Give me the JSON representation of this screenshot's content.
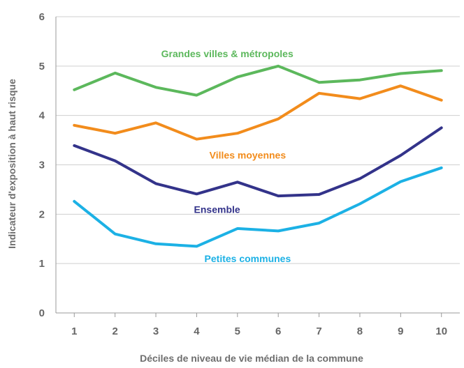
{
  "chart_data": {
    "type": "line",
    "title": "",
    "xlabel": "Déciles de niveau de vie médian de la commune",
    "ylabel": "Indicateur d'exposition à haut risque",
    "x": [
      1,
      2,
      3,
      4,
      5,
      6,
      7,
      8,
      9,
      10
    ],
    "x_tick_labels": [
      "1",
      "2",
      "3",
      "4",
      "5",
      "6",
      "7",
      "8",
      "9",
      "10"
    ],
    "ylim": [
      0,
      6
    ],
    "y_ticks": [
      0,
      1,
      2,
      3,
      4,
      5,
      6
    ],
    "y_tick_labels": [
      "0",
      "1",
      "2",
      "3",
      "4",
      "5",
      "6"
    ],
    "grid": "horizontal",
    "legend": "inline labels",
    "series": [
      {
        "name": "Grandes villes & métropoles",
        "color": "#5cb85c",
        "values": [
          4.52,
          4.86,
          4.57,
          4.41,
          4.78,
          5.0,
          4.67,
          4.72,
          4.85,
          4.91
        ],
        "label_anchor": [
          4.75,
          5.25
        ]
      },
      {
        "name": "Villes moyennes",
        "color": "#f28c1c",
        "values": [
          3.8,
          3.64,
          3.85,
          3.52,
          3.64,
          3.93,
          4.45,
          4.34,
          4.6,
          4.31
        ],
        "label_anchor": [
          5.25,
          3.2
        ]
      },
      {
        "name": "Ensemble",
        "color": "#33338a",
        "values": [
          3.39,
          3.08,
          2.62,
          2.41,
          2.65,
          2.37,
          2.4,
          2.72,
          3.19,
          3.75
        ],
        "label_anchor": [
          4.5,
          2.1
        ]
      },
      {
        "name": "Petites communes",
        "color": "#1cb1e5",
        "values": [
          2.26,
          1.6,
          1.4,
          1.35,
          1.71,
          1.66,
          1.82,
          2.21,
          2.66,
          2.94
        ],
        "label_anchor": [
          5.25,
          1.1
        ]
      }
    ]
  }
}
